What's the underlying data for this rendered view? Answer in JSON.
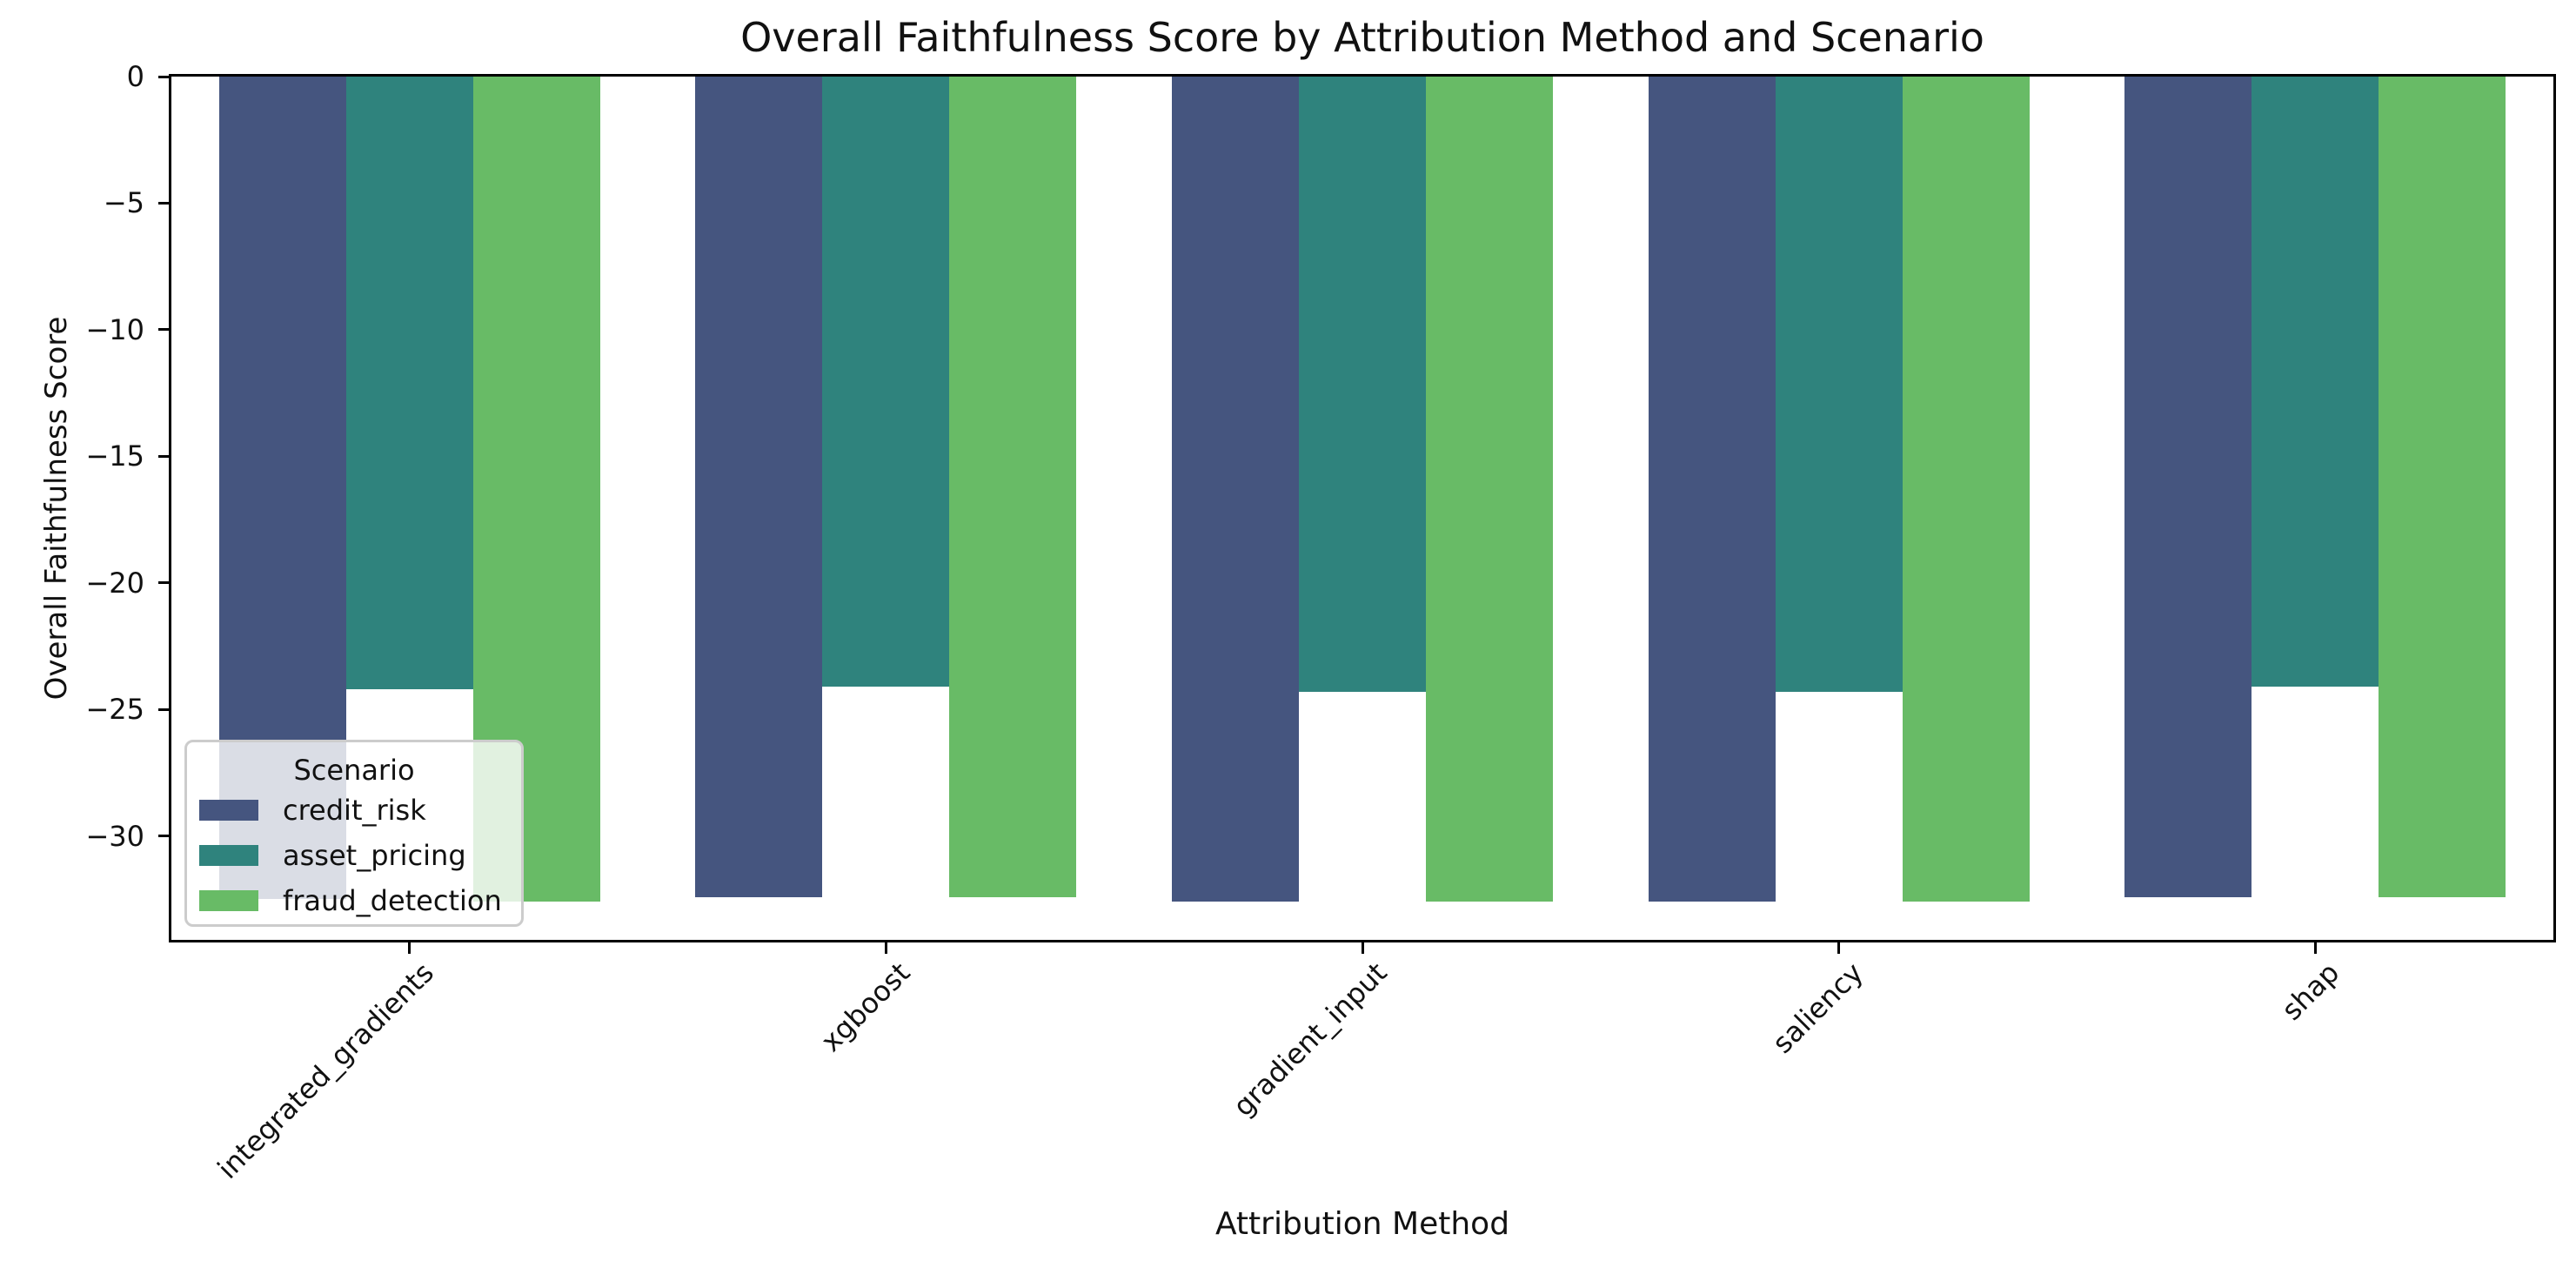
{
  "chart_data": {
    "type": "bar",
    "title": "Overall Faithfulness Score by Attribution Method and Scenario",
    "xlabel": "Attribution Method",
    "ylabel": "Overall Faithfulness Score",
    "categories": [
      "integrated_gradients",
      "xgboost",
      "gradient_input",
      "saliency",
      "shap"
    ],
    "series": [
      {
        "name": "credit_risk",
        "color": "#45557F",
        "values": [
          -32.5,
          -32.4,
          -32.6,
          -32.6,
          -32.4
        ]
      },
      {
        "name": "asset_pricing",
        "color": "#2F837D",
        "values": [
          -24.2,
          -24.1,
          -24.3,
          -24.3,
          -24.1
        ]
      },
      {
        "name": "fraud_detection",
        "color": "#68BB66",
        "values": [
          -32.6,
          -32.4,
          -32.6,
          -32.6,
          -32.4
        ]
      }
    ],
    "ylim": [
      -34.1,
      0
    ],
    "yticks": [
      0,
      -5,
      -10,
      -15,
      -20,
      -25,
      -30
    ],
    "legend_title": "Scenario",
    "legend_position": "lower left",
    "grid": false,
    "axis_color": "#000000",
    "background_color": "#ffffff"
  }
}
